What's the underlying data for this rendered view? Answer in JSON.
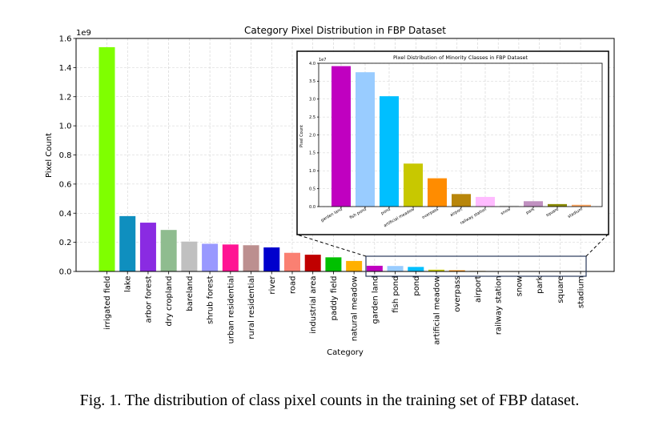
{
  "chart_data": [
    {
      "type": "bar",
      "title": "Category Pixel Distribution in FBP Dataset",
      "xlabel": "Category",
      "ylabel": "Pixel Count",
      "offset_text": "1e9",
      "scale": 1000000000,
      "ylim": [
        0,
        1.6
      ],
      "yticks": [
        "0.0",
        "0.2",
        "0.4",
        "0.6",
        "0.8",
        "1.0",
        "1.2",
        "1.4",
        "1.6"
      ],
      "grid": true,
      "categories": [
        "irrigated field",
        "lake",
        "arbor forest",
        "dry cropland",
        "bareland",
        "shrub forest",
        "urban residential",
        "rural residential",
        "river",
        "road",
        "industrial area",
        "paddy field",
        "natural meadow",
        "garden land",
        "fish pond",
        "pond",
        "artificial meadow",
        "overpass",
        "airport",
        "railway station",
        "snow",
        "park",
        "square",
        "stadium"
      ],
      "values": [
        1.54,
        0.38,
        0.335,
        0.285,
        0.205,
        0.19,
        0.185,
        0.18,
        0.165,
        0.128,
        0.115,
        0.097,
        0.072,
        0.039,
        0.0375,
        0.031,
        0.012,
        0.008,
        0.0035,
        0.0027,
        0.0003,
        0.0015,
        0.0007,
        0.0005
      ],
      "colors": [
        "#7fff00",
        "#0f8fbf",
        "#8a2be2",
        "#8fbc8f",
        "#c0c0c0",
        "#9999ff",
        "#ff1493",
        "#bc8f8f",
        "#0000cd",
        "#fa8072",
        "#c00000",
        "#00c000",
        "#ffb000",
        "#c000c0",
        "#99ccff",
        "#00bfff",
        "#c8c800",
        "#ff8c00",
        "#b8860b",
        "#ffbbff",
        "#e0e0e0",
        "#c090c0",
        "#8b8b00",
        "#ffaa66"
      ]
    },
    {
      "type": "bar",
      "title": "Pixel Distribution of Minority Classes in FBP Dataset",
      "xlabel": "",
      "ylabel": "Pixel Count",
      "offset_text": "1e7",
      "scale": 10000000,
      "ylim": [
        0,
        4.0
      ],
      "yticks": [
        "0.0",
        "0.5",
        "1.0",
        "1.5",
        "2.0",
        "2.5",
        "3.0",
        "3.5",
        "4.0"
      ],
      "grid": true,
      "categories": [
        "garden land",
        "fish pond",
        "pond",
        "artificial meadow",
        "overpass",
        "airport",
        "railway station",
        "snow",
        "park",
        "square",
        "stadium"
      ],
      "values": [
        3.92,
        3.75,
        3.08,
        1.2,
        0.79,
        0.35,
        0.27,
        0.03,
        0.15,
        0.07,
        0.05
      ],
      "colors": [
        "#c000c0",
        "#99ccff",
        "#00bfff",
        "#c8c800",
        "#ff8c00",
        "#b8860b",
        "#ffbbff",
        "#e0e0e0",
        "#c090c0",
        "#8b8b00",
        "#ffaa66"
      ]
    }
  ],
  "caption": "Fig. 1.  The distribution of class pixel counts in the training set of FBP dataset."
}
